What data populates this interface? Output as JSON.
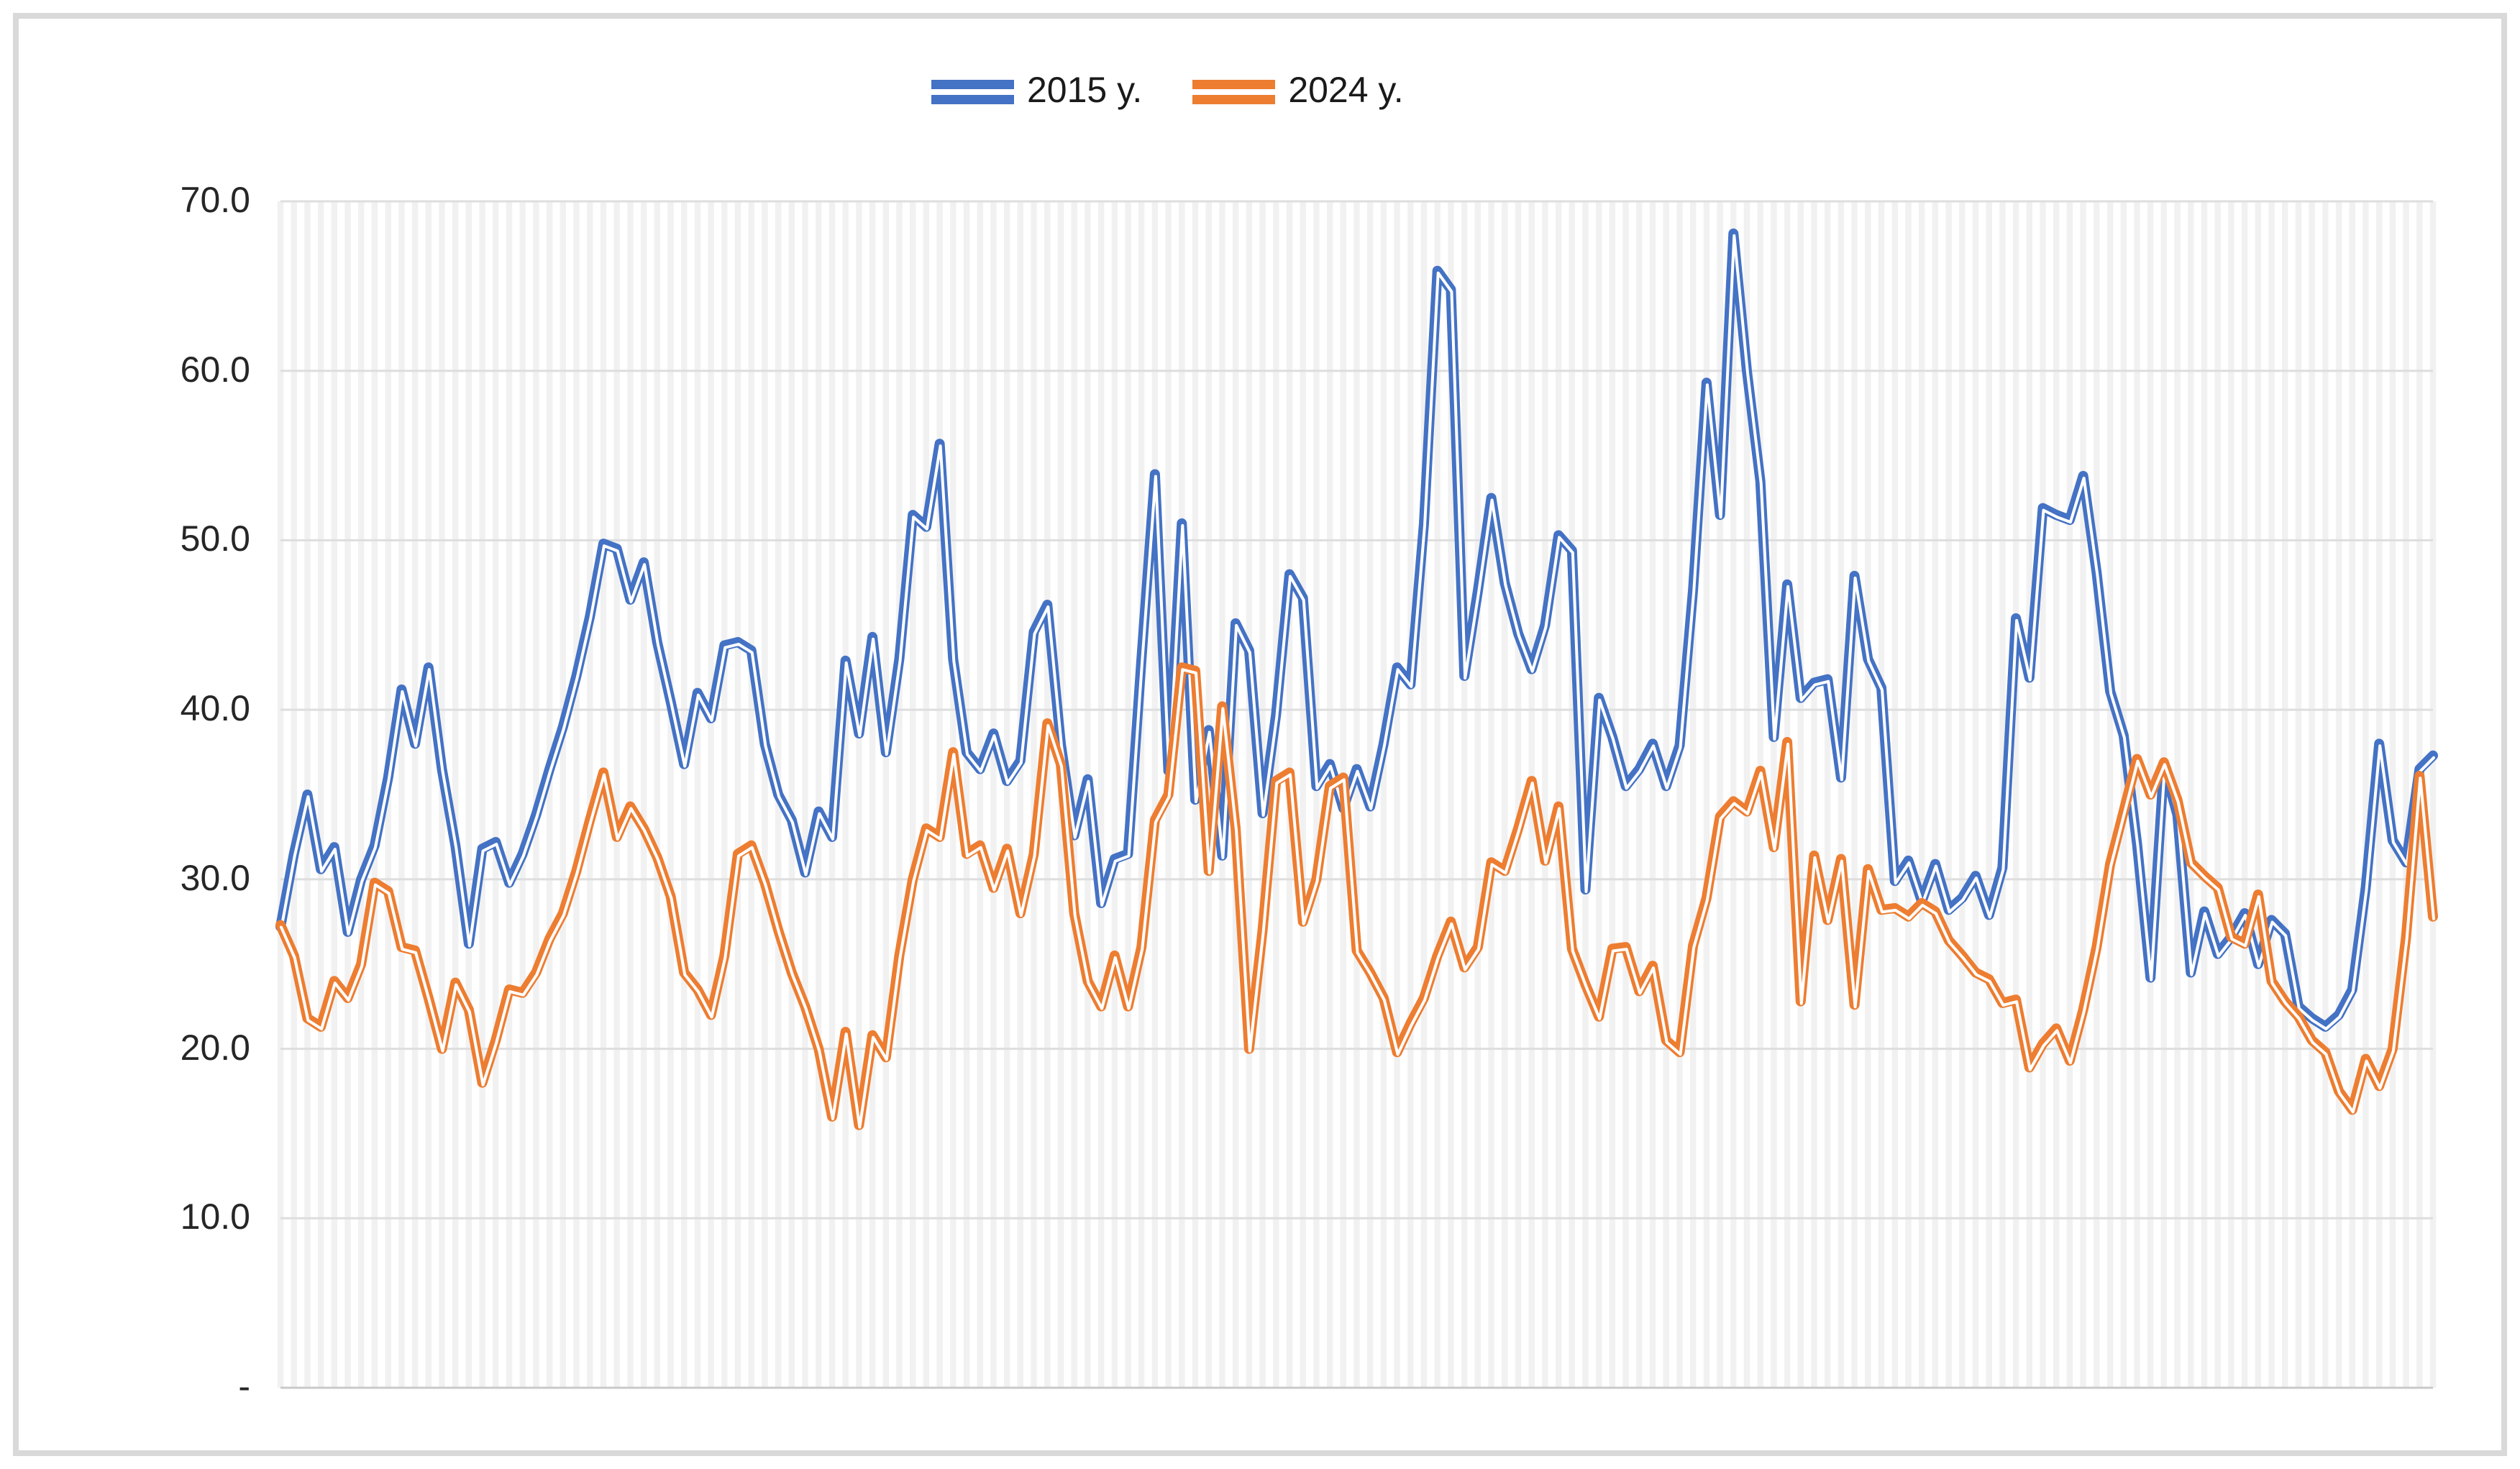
{
  "legend": [
    {
      "label": "2015 y.",
      "color": "#4472C4"
    },
    {
      "label": "2024 y.",
      "color": "#ED7D31"
    }
  ],
  "y_axis": {
    "labels": [
      "70.0",
      "60.0",
      "50.0",
      "40.0",
      "30.0",
      "20.0",
      "10.0",
      "-"
    ],
    "min": 0,
    "max": 70,
    "step": 10
  },
  "colors": {
    "series_2015": "#4472C4",
    "series_2024": "#ED7D31",
    "major_gridline": "#dedede",
    "minor_band": "#f1f1f1",
    "axis_line": "#c9c9c9",
    "frame": "#d9d9d9"
  },
  "chart_data": {
    "type": "line",
    "title": "",
    "xlabel": "",
    "ylabel": "",
    "ylim": [
      0,
      70
    ],
    "grid": {
      "horizontal": true,
      "vertical_minor_bands": true
    },
    "legend_position": "top-center",
    "x_axis_labels_visible": false,
    "series": [
      {
        "name": "2015 y.",
        "color": "#4472C4",
        "values": [
          27.2,
          31.5,
          35.0,
          30.6,
          31.9,
          26.9,
          30.0,
          32.0,
          36.0,
          41.2,
          38.0,
          42.5,
          36.5,
          32.0,
          26.2,
          31.8,
          32.2,
          29.8,
          31.5,
          33.8,
          36.5,
          39.0,
          42.0,
          45.5,
          49.8,
          49.5,
          46.5,
          48.7,
          44.0,
          40.5,
          36.8,
          41.0,
          39.5,
          43.8,
          44.0,
          43.5,
          38.0,
          35.0,
          33.5,
          30.4,
          34.0,
          32.5,
          42.9,
          38.6,
          44.3,
          37.5,
          43.0,
          51.5,
          50.8,
          55.7,
          43.0,
          37.5,
          36.5,
          38.6,
          35.8,
          37.0,
          44.6,
          46.2,
          38.0,
          32.6,
          35.9,
          28.6,
          31.2,
          31.5,
          43.0,
          53.9,
          36.4,
          51.0,
          34.7,
          38.8,
          31.4,
          45.1,
          43.5,
          33.9,
          39.7,
          48.0,
          46.6,
          35.5,
          36.8,
          34.2,
          36.5,
          34.3,
          38.0,
          42.5,
          41.5,
          51.0,
          65.9,
          64.8,
          42.0,
          47.0,
          52.5,
          47.5,
          44.5,
          42.4,
          45.0,
          50.3,
          49.4,
          29.4,
          40.7,
          38.4,
          35.5,
          36.5,
          38.0,
          35.5,
          37.9,
          47.1,
          59.3,
          51.5,
          68.1,
          60.0,
          53.5,
          38.4,
          47.4,
          40.7,
          41.6,
          41.8,
          36.0,
          47.9,
          43.0,
          41.3,
          29.9,
          31.1,
          28.7,
          30.9,
          28.2,
          28.9,
          30.2,
          27.9,
          30.7,
          45.4,
          41.9,
          51.9,
          51.5,
          51.2,
          53.8,
          48.1,
          41.1,
          38.5,
          32.1,
          24.2,
          36.7,
          33.8,
          24.5,
          28.1,
          25.6,
          26.6,
          28.0,
          25.0,
          27.6,
          26.8,
          22.5,
          21.8,
          21.3,
          22.0,
          23.5,
          29.5,
          38.0,
          32.3,
          31.0,
          36.5,
          37.3
        ]
      },
      {
        "name": "2024 y.",
        "color": "#ED7D31",
        "values": [
          27.3,
          25.5,
          21.8,
          21.3,
          24.0,
          23.0,
          25.0,
          29.8,
          29.3,
          26.0,
          25.8,
          23.0,
          20.0,
          23.9,
          22.3,
          18.0,
          20.5,
          23.5,
          23.3,
          24.5,
          26.5,
          28.0,
          30.5,
          33.5,
          36.3,
          32.5,
          34.3,
          33.0,
          31.3,
          29.0,
          24.5,
          23.5,
          22.0,
          25.5,
          31.5,
          32.0,
          29.8,
          27.0,
          24.5,
          22.5,
          20.0,
          16.0,
          21.0,
          15.5,
          20.8,
          19.5,
          25.5,
          30.0,
          33.0,
          32.5,
          37.5,
          31.5,
          32.0,
          29.5,
          31.8,
          28.0,
          31.5,
          39.2,
          36.8,
          28.0,
          24.0,
          22.5,
          25.5,
          22.5,
          26.0,
          33.5,
          35.0,
          42.5,
          42.3,
          30.5,
          40.2,
          33.0,
          20.0,
          27.0,
          35.8,
          36.3,
          27.5,
          30.0,
          35.5,
          36.0,
          25.8,
          24.5,
          23.0,
          19.8,
          21.5,
          23.0,
          25.5,
          27.5,
          24.8,
          26.0,
          31.0,
          30.5,
          33.0,
          35.8,
          31.1,
          34.3,
          25.9,
          23.8,
          21.9,
          25.9,
          26.0,
          23.4,
          24.9,
          20.5,
          19.8,
          26.1,
          28.9,
          33.7,
          34.6,
          34.0,
          36.4,
          31.9,
          38.1,
          22.8,
          31.4,
          27.6,
          31.2,
          22.6,
          30.6,
          28.2,
          28.3,
          27.8,
          28.6,
          28.1,
          26.4,
          25.5,
          24.5,
          24.1,
          22.7,
          22.9,
          18.9,
          20.3,
          21.2,
          19.3,
          22.3,
          26.0,
          30.9,
          34.0,
          37.1,
          35.0,
          36.9,
          34.7,
          31.0,
          30.2,
          29.5,
          26.6,
          26.2,
          29.1,
          24.0,
          22.8,
          21.9,
          20.5,
          19.8,
          17.5,
          16.4,
          19.4,
          17.8,
          20.0,
          26.6,
          36.1,
          27.8
        ]
      }
    ]
  }
}
